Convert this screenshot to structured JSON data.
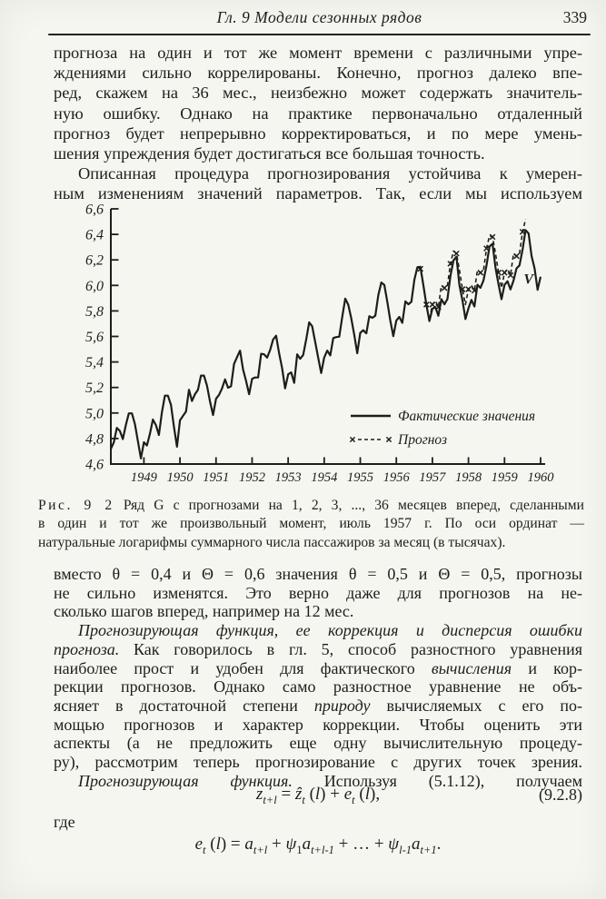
{
  "header": {
    "chapter": "Гл. 9  Модели сезонных рядов",
    "page_number": "339"
  },
  "body": {
    "top": [
      {
        "indent": false,
        "justify_last": false,
        "lines": [
          [
            {
              "t": "прогноза на один и тот же момент времени с различными упре-"
            }
          ],
          [
            {
              "t": "ждениями сильно коррелированы. Конечно, прогноз далеко впе-"
            }
          ],
          [
            {
              "t": "ред, скажем на 36 мес., неизбежно может содержать значитель-"
            }
          ],
          [
            {
              "t": "ную ошибку. Однако на практике первоначально отдаленный"
            }
          ],
          [
            {
              "t": "прогноз будет непрерывно корректироваться, и по мере умень-"
            }
          ],
          [
            {
              "t": "шения упреждения будет достигаться все большая точность."
            }
          ]
        ]
      },
      {
        "indent": true,
        "justify_last": true,
        "lines": [
          [
            {
              "t": "Описанная процедура прогнозирования устойчива к умерен-"
            }
          ],
          [
            {
              "t": "ным изменениям значений параметров. Так, если мы используем"
            }
          ]
        ]
      }
    ],
    "bottom": [
      {
        "indent": false,
        "justify_last": false,
        "lines": [
          [
            {
              "t": "вместо θ = 0,4 и Θ = 0,6 значения θ = 0,5 и Θ = 0,5, прогнозы"
            }
          ],
          [
            {
              "t": "не сильно изменятся. Это верно даже для прогнозов на не-"
            }
          ],
          [
            {
              "t": "сколько шагов вперед, например на 12 мес."
            }
          ]
        ]
      },
      {
        "indent": true,
        "justify_last": true,
        "lines": [
          [
            {
              "t": "Прогнозирующая функция, ее коррекция и дисперсия ошибки",
              "i": 1
            }
          ],
          [
            {
              "t": "прогноза.",
              "i": 1
            },
            {
              "t": " Как говорилось в гл. 5, способ разностного уравнения"
            }
          ],
          [
            {
              "t": "наиболее прост и удобен для фактического "
            },
            {
              "t": "вычисления",
              "i": 1
            },
            {
              "t": " и кор-"
            }
          ],
          [
            {
              "t": "рекции прогнозов. Однако само разностное уравнение не объ-"
            }
          ],
          [
            {
              "t": "ясняет в достаточной степени "
            },
            {
              "t": "природу",
              "i": 1
            },
            {
              "t": " вычисляемых с его по-"
            }
          ],
          [
            {
              "t": "мощью прогнозов и характер коррекции. Чтобы оценить эти"
            }
          ],
          [
            {
              "t": "аспекты (а не предложить еще одну вычислительную процеду-"
            }
          ],
          [
            {
              "t": "ру), рассмотрим теперь прогнозирование с других точек зрения."
            }
          ]
        ]
      },
      {
        "indent": true,
        "justify_last": true,
        "lines": [
          [
            {
              "t": "Прогнозирующая функция.",
              "i": 1
            },
            {
              "t": " Используя (5.1.12), получаем"
            }
          ]
        ]
      }
    ]
  },
  "figure": {
    "caption_lines": [
      {
        "just": true,
        "runs": [
          {
            "t": "Рис. 9 2",
            "ls": 1
          },
          {
            "t": "  Ряд G с прогнозами на 1, 2, 3, ..., 36 месяцев вперед, сделанными"
          }
        ]
      },
      {
        "just": true,
        "runs": [
          {
            "t": "в один и тот же произвольный момент, июль 1957 г. По оси ординат —"
          }
        ]
      },
      {
        "just": false,
        "runs": [
          {
            "t": "натуральные логарифмы суммарного числа пассажиров за месяц (в тысячах)."
          }
        ]
      }
    ]
  },
  "formulas": {
    "where_label": "где",
    "equation1": {
      "number": "(9.2.8)",
      "segments": [
        {
          "t": "z",
          "i": 1
        },
        {
          "t": "t+l",
          "sub": 1,
          "i": 1
        },
        {
          "t": " = "
        },
        {
          "t": "ẑ",
          "i": 1
        },
        {
          "t": "t",
          "sub": 1,
          "i": 1
        },
        {
          "t": " ("
        },
        {
          "t": "l",
          "i": 1
        },
        {
          "t": ") + "
        },
        {
          "t": "e",
          "i": 1
        },
        {
          "t": "t",
          "sub": 1,
          "i": 1
        },
        {
          "t": " ("
        },
        {
          "t": "l",
          "i": 1
        },
        {
          "t": "),"
        }
      ]
    },
    "equation2": {
      "segments": [
        {
          "t": "e",
          "i": 1
        },
        {
          "t": "t",
          "sub": 1,
          "i": 1
        },
        {
          "t": " ("
        },
        {
          "t": "l",
          "i": 1
        },
        {
          "t": ") = "
        },
        {
          "t": "a",
          "i": 1
        },
        {
          "t": "t+l",
          "sub": 1,
          "i": 1
        },
        {
          "t": " + "
        },
        {
          "t": "ψ",
          "i": 1
        },
        {
          "t": "1",
          "sub": 1
        },
        {
          "t": "a",
          "i": 1
        },
        {
          "t": "t+l-1",
          "sub": 1,
          "i": 1
        },
        {
          "t": " +  …  + "
        },
        {
          "t": "ψ",
          "i": 1
        },
        {
          "t": "l-1",
          "sub": 1,
          "i": 1
        },
        {
          "t": "a",
          "i": 1
        },
        {
          "t": "t+1",
          "sub": 1,
          "i": 1
        },
        {
          "t": "."
        }
      ]
    }
  },
  "chart_data": {
    "type": "line",
    "title": "",
    "xlabel": "",
    "ylabel": "натуральные логарифмы суммарного числа пассажиров за месяц (в тысячах)",
    "ylim": [
      4.6,
      6.6
    ],
    "y_ticks": [
      6.6,
      6.4,
      6.2,
      6.0,
      5.8,
      5.6,
      5.4,
      5.2,
      5.0,
      4.8,
      4.6
    ],
    "x_tick_labels": [
      "1949",
      "1950",
      "1951",
      "1952",
      "1953",
      "1954",
      "1955",
      "1956",
      "1957",
      "1958",
      "1959",
      "1960"
    ],
    "grid": false,
    "legend_position": "inside-right-lower",
    "legend": [
      {
        "label": "Фактические значения",
        "style": "solid"
      },
      {
        "label": "Прогноз",
        "style": "x-dashed"
      }
    ],
    "series": [
      {
        "name": "Фактические значения",
        "style": "solid",
        "start_month": "1949-01",
        "values": [
          4.718,
          4.771,
          4.883,
          4.86,
          4.796,
          4.905,
          4.997,
          4.997,
          4.913,
          4.779,
          4.644,
          4.771,
          4.745,
          4.836,
          4.949,
          4.905,
          4.828,
          5.004,
          5.136,
          5.136,
          5.063,
          4.89,
          4.736,
          4.942,
          4.977,
          5.011,
          5.182,
          5.094,
          5.147,
          5.182,
          5.293,
          5.293,
          5.215,
          5.088,
          4.984,
          5.112,
          5.142,
          5.193,
          5.263,
          5.198,
          5.209,
          5.384,
          5.438,
          5.489,
          5.342,
          5.252,
          5.147,
          5.268,
          5.278,
          5.278,
          5.464,
          5.46,
          5.434,
          5.493,
          5.576,
          5.606,
          5.468,
          5.352,
          5.193,
          5.303,
          5.318,
          5.236,
          5.46,
          5.425,
          5.455,
          5.576,
          5.71,
          5.68,
          5.557,
          5.434,
          5.313,
          5.434,
          5.489,
          5.451,
          5.587,
          5.595,
          5.598,
          5.753,
          5.897,
          5.849,
          5.743,
          5.613,
          5.468,
          5.628,
          5.649,
          5.624,
          5.759,
          5.746,
          5.762,
          5.924,
          6.023,
          6.004,
          5.872,
          5.724,
          5.602,
          5.724,
          5.753,
          5.707,
          5.875,
          5.852,
          5.872,
          6.045,
          6.142,
          6.146,
          6.001,
          5.849,
          5.72,
          5.817,
          5.829,
          5.762,
          5.892,
          5.852,
          5.894,
          6.075,
          6.196,
          6.225,
          6.001,
          5.883,
          5.737,
          5.82,
          5.886,
          5.835,
          6.006,
          5.981,
          6.04,
          6.157,
          6.306,
          6.326,
          6.138,
          6.009,
          5.892,
          6.004,
          6.033,
          5.969,
          6.038,
          6.133,
          6.157,
          6.282,
          6.433,
          6.407,
          6.23,
          6.133,
          5.966,
          6.068
        ]
      },
      {
        "name": "Прогноз",
        "style": "x-dashed",
        "start_month": "1957-07",
        "origin": "1957-07",
        "values": [
          6.142,
          6.13,
          6.0,
          5.85,
          5.73,
          5.85,
          5.88,
          5.83,
          6.0,
          5.98,
          6.0,
          6.17,
          6.27,
          6.25,
          6.12,
          5.97,
          5.85,
          5.97,
          6.0,
          5.96,
          6.12,
          6.1,
          6.12,
          6.29,
          6.39,
          6.38,
          6.25,
          6.1,
          5.98,
          6.1,
          6.13,
          6.08,
          6.25,
          6.23,
          6.25,
          6.42,
          6.52
        ]
      }
    ],
    "annotations": [
      {
        "text": "V",
        "month": "1960-08",
        "value": 6.05
      }
    ]
  }
}
